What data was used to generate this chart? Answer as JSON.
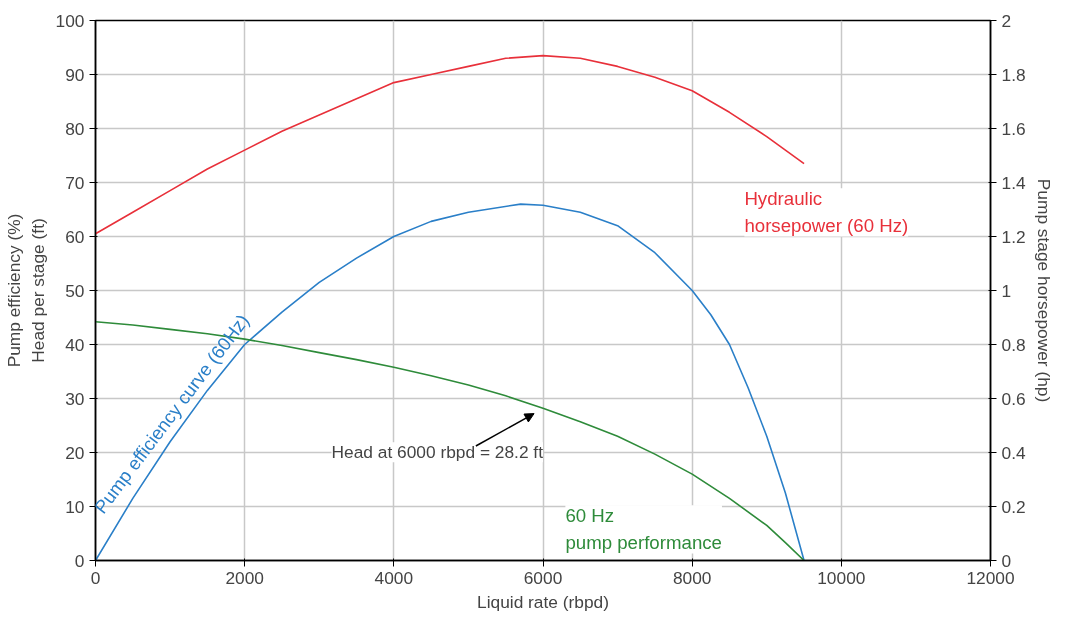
{
  "chart_data": {
    "type": "line",
    "xlabel": "Liquid rate (rbpd)",
    "ylabel": "Pump efficiency (%)\nHead per stage (ft)",
    "y2label": "Pump stage horsepower (hp)",
    "xlim": [
      0,
      12000
    ],
    "xticks": [
      0,
      2000,
      4000,
      6000,
      8000,
      10000,
      12000
    ],
    "ylim": [
      0,
      100
    ],
    "yticks": [
      0,
      10,
      20,
      30,
      40,
      50,
      60,
      70,
      80,
      90,
      100
    ],
    "y2lim": [
      0,
      2
    ],
    "y2ticks": [
      0,
      {
        "value": 0.2,
        "label": "0.2"
      },
      {
        "value": 0.4,
        "label": "0.4"
      },
      {
        "value": 0.6,
        "label": "0.6"
      },
      {
        "value": 0.8,
        "label": "0.8"
      },
      1,
      {
        "value": 1.2,
        "label": "1.2"
      },
      {
        "value": 1.4,
        "label": "1.4"
      },
      {
        "value": 1.6,
        "label": "1.6"
      },
      {
        "value": 1.8,
        "label": "1.8"
      },
      2
    ],
    "grid": true,
    "series": [
      {
        "name": "Hydraulic\nhorsepower (60 Hz)",
        "color": "#e8303a",
        "axis": "y2",
        "x": [
          0,
          500,
          1000,
          1500,
          2000,
          2500,
          3000,
          3500,
          4000,
          4500,
          5000,
          5500,
          6000,
          6500,
          7000,
          7500,
          8000,
          8500,
          9000,
          9250,
          9500
        ],
        "values": [
          1.21,
          1.29,
          1.37,
          1.45,
          1.52,
          1.59,
          1.65,
          1.71,
          1.77,
          1.8,
          1.83,
          1.86,
          1.87,
          1.86,
          1.83,
          1.79,
          1.74,
          1.66,
          1.57,
          1.52,
          1.47
        ]
      },
      {
        "name": "Pump efficiency curve (60Hz)",
        "color": "#2a7fc8",
        "x": [
          0,
          500,
          1000,
          1500,
          2000,
          2500,
          3000,
          3500,
          4000,
          4500,
          5000,
          5700,
          6000,
          6500,
          7000,
          7500,
          8000,
          8250,
          8500,
          8750,
          9000,
          9250,
          9500
        ],
        "values": [
          0,
          11.5,
          22,
          31.5,
          40,
          46,
          51.5,
          56,
          60,
          62.8,
          64.5,
          66,
          65.8,
          64.5,
          62,
          57,
          50,
          45.5,
          40,
          32,
          23,
          12.5,
          0
        ]
      },
      {
        "name": "60 Hz\npump performance",
        "color": "#2e8b3a",
        "x": [
          0,
          500,
          1000,
          1500,
          2000,
          2500,
          3000,
          3500,
          4000,
          4500,
          5000,
          5500,
          6000,
          6500,
          7000,
          7500,
          8000,
          8500,
          9000,
          9250,
          9500
        ],
        "values": [
          44.2,
          43.6,
          42.8,
          42,
          41,
          39.8,
          38.5,
          37.2,
          35.8,
          34.2,
          32.5,
          30.5,
          28.2,
          25.7,
          23,
          19.7,
          16,
          11.5,
          6.5,
          3.3,
          0
        ]
      }
    ],
    "annotations": [
      {
        "text": "Head at 6000 rbpd = 28.2 ft",
        "x": 6000,
        "y": 28.2
      }
    ]
  }
}
